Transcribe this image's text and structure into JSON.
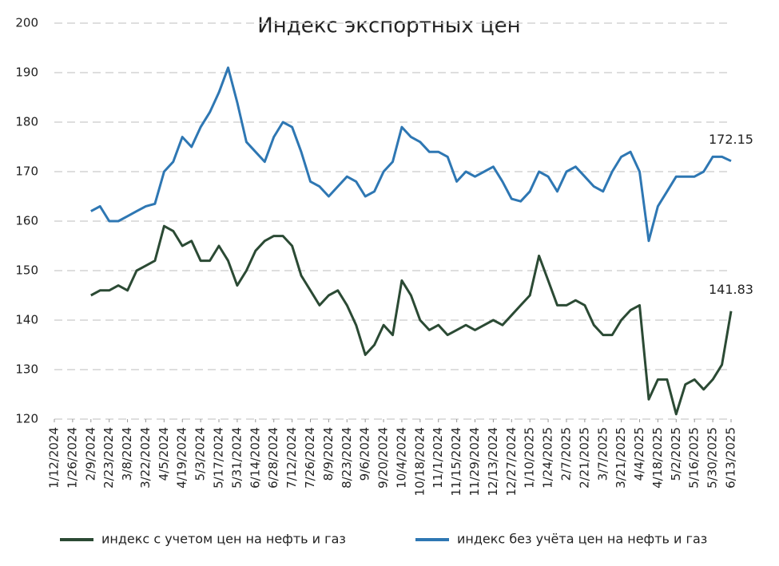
{
  "chart_data": {
    "type": "line",
    "title": "Индекс экспортных цен",
    "x": [
      "2/9/2024",
      "2/16/2024",
      "2/23/2024",
      "3/1/2024",
      "3/8/2024",
      "3/15/2024",
      "3/22/2024",
      "3/29/2024",
      "4/5/2024",
      "4/12/2024",
      "4/19/2024",
      "4/26/2024",
      "5/3/2024",
      "5/10/2024",
      "5/17/2024",
      "5/24/2024",
      "5/31/2024",
      "6/7/2024",
      "6/14/2024",
      "6/21/2024",
      "6/28/2024",
      "7/5/2024",
      "7/12/2024",
      "7/19/2024",
      "7/26/2024",
      "8/2/2024",
      "8/9/2024",
      "8/16/2024",
      "8/23/2024",
      "8/30/2024",
      "9/6/2024",
      "9/13/2024",
      "9/20/2024",
      "9/27/2024",
      "10/4/2024",
      "10/11/2024",
      "10/18/2024",
      "10/25/2024",
      "11/1/2024",
      "11/8/2024",
      "11/15/2024",
      "11/22/2024",
      "11/29/2024",
      "12/6/2024",
      "12/13/2024",
      "12/20/2024",
      "12/27/2024",
      "1/3/2025",
      "1/10/2025",
      "1/17/2025",
      "1/24/2025",
      "1/31/2025",
      "2/7/2025",
      "2/14/2025",
      "2/21/2025",
      "2/28/2025",
      "3/7/2025",
      "3/14/2025",
      "3/21/2025",
      "3/28/2025",
      "4/4/2025",
      "4/11/2025",
      "4/18/2025",
      "4/25/2025",
      "5/2/2025",
      "5/9/2025",
      "5/16/2025",
      "5/23/2025",
      "5/30/2025",
      "6/6/2025",
      "6/13/2025"
    ],
    "series": [
      {
        "name": "индекс с учетом цен на нефть и газ",
        "color": "#2b4a34",
        "values": [
          145,
          146,
          146,
          147,
          146,
          150,
          151,
          152,
          159,
          158,
          155,
          156,
          152,
          152,
          155,
          152,
          147,
          150,
          154,
          156,
          157,
          157,
          155,
          149,
          146,
          143,
          145,
          146,
          143,
          139,
          133,
          135,
          139,
          137,
          148,
          145,
          140,
          138,
          139,
          137,
          138,
          139,
          138,
          139,
          140,
          139,
          141,
          143,
          145,
          153,
          148,
          143,
          143,
          144,
          143,
          139,
          137,
          137,
          140,
          142,
          143,
          124,
          128,
          128,
          121,
          127,
          128,
          126,
          128,
          131,
          141.83
        ]
      },
      {
        "name": "индекс без учёта цен на нефть и газ",
        "color": "#2e77b3",
        "values": [
          162,
          163,
          160,
          160,
          161,
          162,
          163,
          163.5,
          170,
          172,
          177,
          175,
          179,
          182,
          186,
          191,
          184,
          176,
          174,
          172,
          177,
          180,
          179,
          174,
          168,
          167,
          165,
          167,
          169,
          168,
          165,
          166,
          170,
          172,
          179,
          177,
          176,
          174,
          174,
          173,
          168,
          170,
          169,
          170,
          171,
          168,
          164.5,
          164,
          166,
          170,
          169,
          166,
          170,
          171,
          169,
          167,
          166,
          170,
          173,
          174,
          170,
          156,
          163,
          166,
          169,
          169,
          169,
          170,
          173,
          173,
          172.15
        ]
      }
    ],
    "xlim": [
      "1/12/2024",
      "6/13/2025"
    ],
    "xticks": [
      "1/12/2024",
      "1/26/2024",
      "2/9/2024",
      "2/23/2024",
      "3/8/2024",
      "3/22/2024",
      "4/5/2024",
      "4/19/2024",
      "5/3/2024",
      "5/17/2024",
      "5/31/2024",
      "6/14/2024",
      "6/28/2024",
      "7/12/2024",
      "7/26/2024",
      "8/9/2024",
      "8/23/2024",
      "9/6/2024",
      "9/20/2024",
      "10/4/2024",
      "10/18/2024",
      "11/1/2024",
      "11/15/2024",
      "11/29/2024",
      "12/13/2024",
      "12/27/2024",
      "1/10/2025",
      "1/24/2025",
      "2/7/2025",
      "2/21/2025",
      "3/7/2025",
      "3/21/2025",
      "4/4/2025",
      "4/18/2025",
      "5/2/2025",
      "5/16/2025",
      "5/30/2025",
      "6/13/2025"
    ],
    "ylim": [
      120,
      200
    ],
    "yticks": [
      120,
      130,
      140,
      150,
      160,
      170,
      180,
      190,
      200
    ],
    "grid": true,
    "legend": "bottom"
  }
}
